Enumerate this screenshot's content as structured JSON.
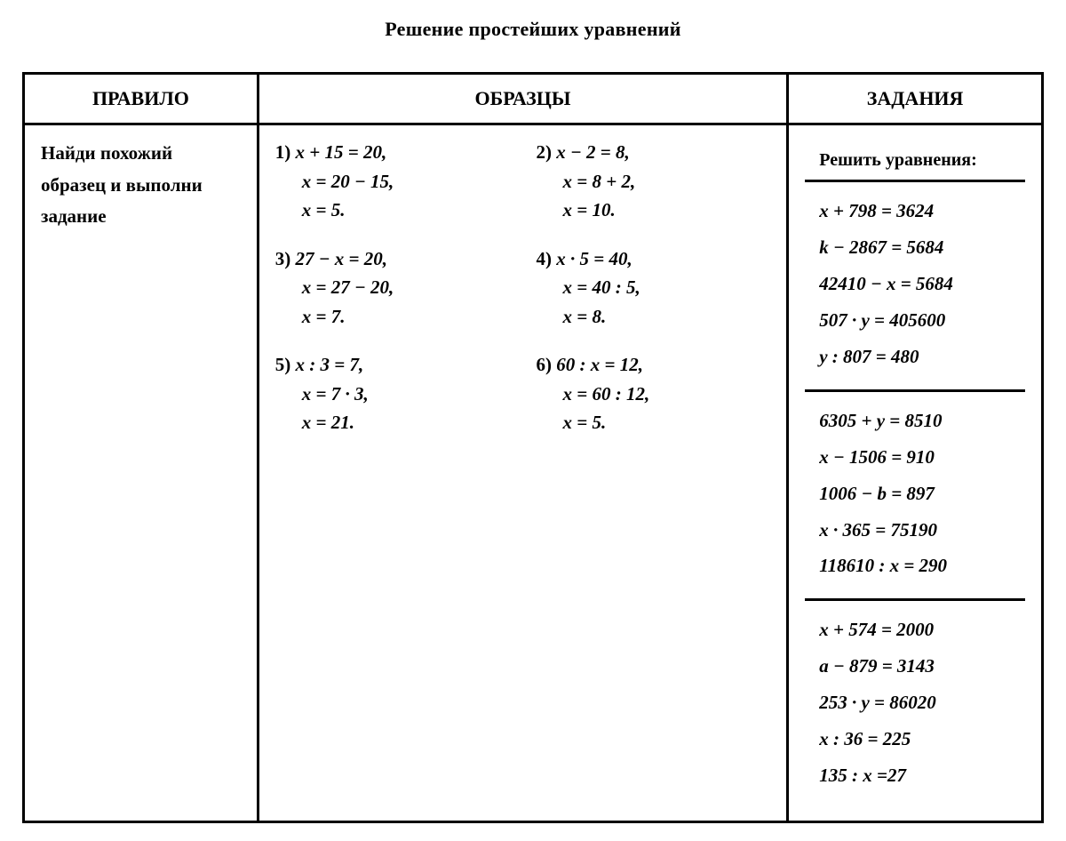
{
  "document": {
    "title": "Решение простейших уравнений",
    "type": "table",
    "border_color": "#000000",
    "background_color": "#ffffff",
    "text_color": "#000000",
    "title_fontsize": 22,
    "body_fontsize": 21
  },
  "columns": {
    "rule": "ПРАВИЛО",
    "examples": "ОБРАЗЦЫ",
    "tasks": "ЗАДАНИЯ"
  },
  "rule_text": "Найди похожий образец и выполни задание",
  "examples": [
    {
      "num": "1)",
      "l1": "x + 15 = 20,",
      "l2": "x = 20 − 15,",
      "l3": "x = 5."
    },
    {
      "num": "2)",
      "l1": "x − 2 = 8,",
      "l2": "x = 8 + 2,",
      "l3": "x = 10."
    },
    {
      "num": "3)",
      "l1": "27 − x = 20,",
      "l2": "x = 27 − 20,",
      "l3": "x = 7."
    },
    {
      "num": "4)",
      "l1": "x · 5 = 40,",
      "l2": "x = 40 : 5,",
      "l3": "x = 8."
    },
    {
      "num": "5)",
      "l1": "x : 3 = 7,",
      "l2": "x = 7 · 3,",
      "l3": "x = 21."
    },
    {
      "num": "6)",
      "l1": "60 : x = 12,",
      "l2": "x = 60 : 12,",
      "l3": "x = 5."
    }
  ],
  "tasks_header": "Решить уравнения:",
  "task_groups": [
    [
      "x + 798 = 3624",
      "k − 2867 = 5684",
      "42410 − x = 5684",
      "507 · y = 405600",
      "y : 807 = 480"
    ],
    [
      "6305 + y = 8510",
      "x − 1506 = 910",
      "1006 − b = 897",
      "x · 365 = 75190",
      "118610 : x = 290"
    ],
    [
      "x + 574 = 2000",
      "a − 879 = 3143",
      "253 · y = 86020",
      "x : 36 = 225",
      "135 : x =27"
    ]
  ]
}
